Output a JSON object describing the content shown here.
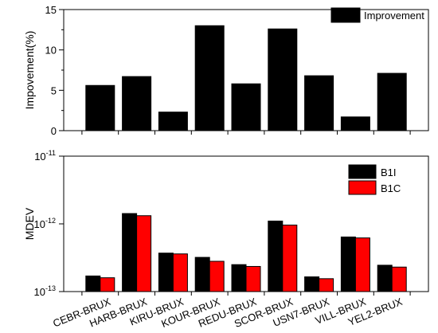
{
  "chart_data": [
    {
      "type": "bar",
      "categories": [
        "CEBR-BRUX",
        "HARB-BRUX",
        "KIRU-BRUX",
        "KOUR-BRUX",
        "REDU-BRUX",
        "SCOR-BRUX",
        "USN7-BRUX",
        "VILL-BRUX",
        "YEL2-BRUX"
      ],
      "series": [
        {
          "name": "Improvement",
          "values": [
            5.6,
            6.7,
            2.3,
            13.0,
            5.8,
            12.6,
            6.8,
            1.7,
            7.1
          ],
          "color": "#000000"
        }
      ],
      "ylabel": "Impovement(%)",
      "ylim": [
        0,
        15
      ],
      "yticks": [
        "0",
        "5",
        "10",
        "15"
      ],
      "grid": false,
      "legend": "top-right"
    },
    {
      "type": "bar",
      "categories": [
        "CEBR-BRUX",
        "HARB-BRUX",
        "KIRU-BRUX",
        "KOUR-BRUX",
        "REDU-BRUX",
        "SCOR-BRUX",
        "USN7-BRUX",
        "VILL-BRUX",
        "YEL2-BRUX"
      ],
      "series": [
        {
          "name": "B1I",
          "values": [
            1.7e-13,
            1.42e-12,
            3.7e-13,
            3.2e-13,
            2.5e-13,
            1.1e-12,
            1.65e-13,
            6.4e-13,
            2.45e-13
          ],
          "color": "#000000"
        },
        {
          "name": "B1C",
          "values": [
            1.6e-13,
            1.32e-12,
            3.6e-13,
            2.8e-13,
            2.35e-13,
            9.6e-13,
            1.55e-13,
            6.2e-13,
            2.3e-13
          ],
          "color": "#ff0000"
        }
      ],
      "ylabel": "MDEV",
      "yscale": "log",
      "ylim": [
        1e-13,
        1e-11
      ],
      "yticks": [
        {
          "base": "10",
          "exp": "-13"
        },
        {
          "base": "10",
          "exp": "-12"
        },
        {
          "base": "10",
          "exp": "-11"
        }
      ],
      "grid": false,
      "legend": "top-right"
    }
  ]
}
